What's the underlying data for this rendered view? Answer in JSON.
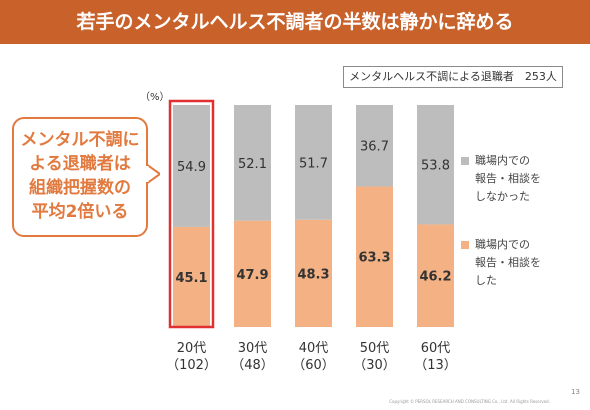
{
  "title": "若手のメンタルヘルス不調者の半数は静かに辞める",
  "info_box": "メンタルヘルス不調による退職者　253人",
  "unit_label": "（%）",
  "callout": [
    "メンタル不調に",
    "よる退職者は",
    "組織把握数の",
    "平均2倍いる"
  ],
  "legend": [
    {
      "label": "職場内での\n報告・相談を\nしなかった",
      "color": "#bdbdbd"
    },
    {
      "label": "職場内での\n報告・相談を\nした",
      "color": "#f4b183"
    }
  ],
  "colors": {
    "header": "#c8612a",
    "accent": "#e27a3f",
    "highlight": "#e03030"
  },
  "footer": "Copyright © PERSOL RESEARCH AND CONSULTING Co., Ltd. All Rights Reserved.",
  "page_number": "13",
  "chart_data": {
    "type": "bar",
    "stacked": true,
    "categories": [
      "20代\n（102）",
      "30代\n（48）",
      "40代\n（60）",
      "50代\n（30）",
      "60代\n（13）"
    ],
    "series": [
      {
        "name": "職場内での報告・相談をした",
        "values": [
          45.1,
          47.9,
          48.3,
          63.3,
          46.2
        ],
        "color": "#f4b183"
      },
      {
        "name": "職場内での報告・相談をしなかった",
        "values": [
          54.9,
          52.1,
          51.7,
          36.7,
          53.8
        ],
        "color": "#bdbdbd"
      }
    ],
    "ylim": [
      0,
      100
    ],
    "highlight_category_index": 0,
    "ylabel": "（%）"
  }
}
